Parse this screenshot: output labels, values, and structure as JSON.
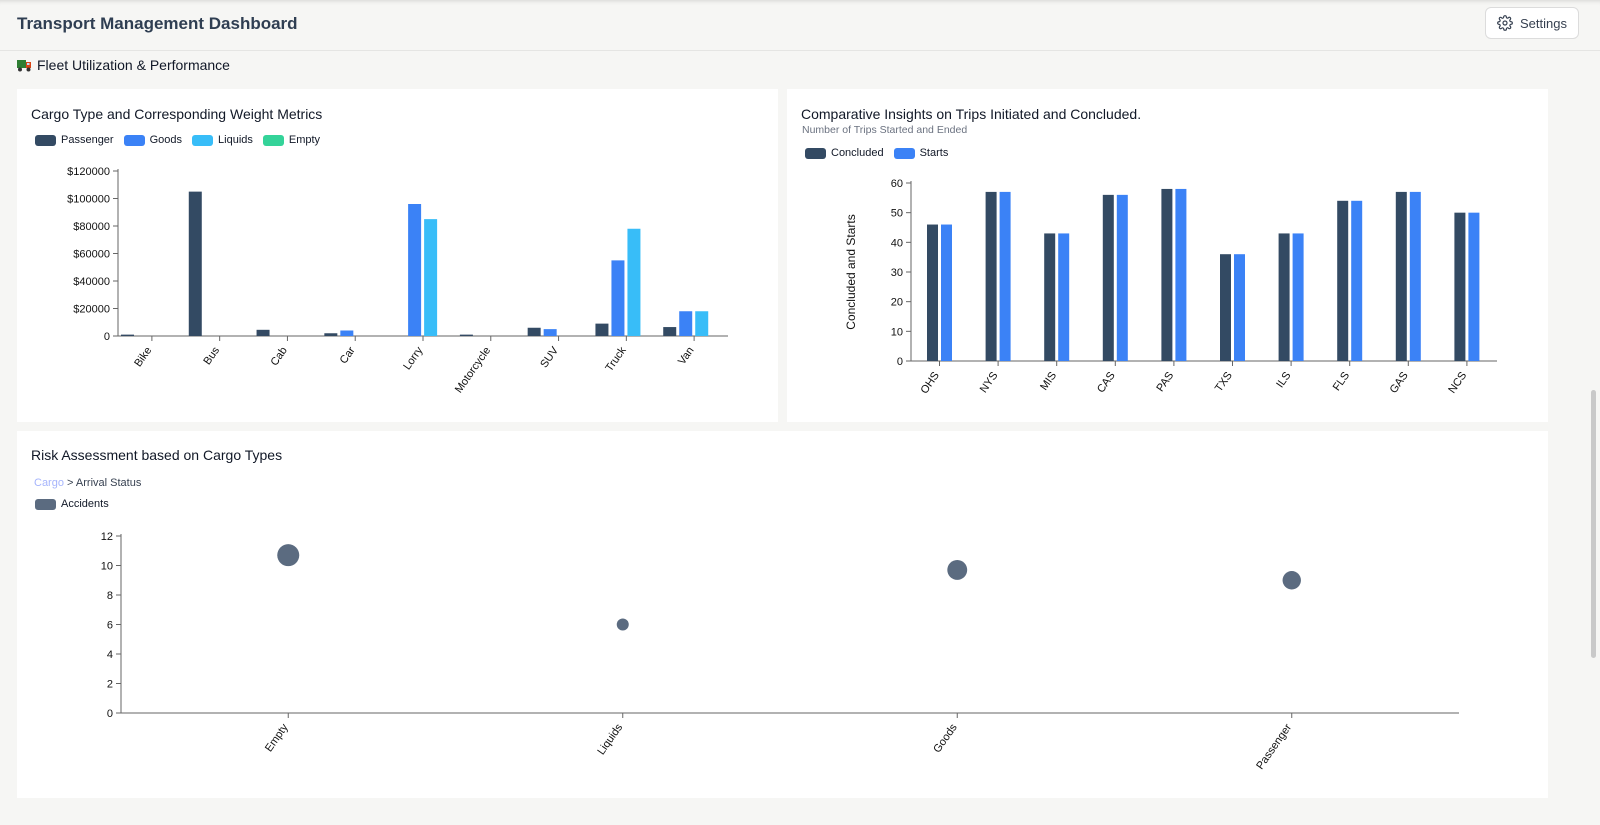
{
  "app": {
    "title": "Transport Management Dashboard",
    "settings_label": "Settings"
  },
  "section": {
    "title": "Fleet Utilization & Performance"
  },
  "charts": {
    "cargo": {
      "title": "Cargo Type and Corresponding Weight Metrics"
    },
    "trips": {
      "title": "Comparative Insights on Trips Initiated and Concluded.",
      "subtitle": "Number of Trips Started and Ended"
    },
    "risk": {
      "title": "Risk Assessment based on Cargo Types",
      "breadcrumb_link": "Cargo",
      "breadcrumb_sep": ">",
      "breadcrumb_current": "Arrival Status"
    }
  },
  "colors": {
    "passenger": "#334a63",
    "goods": "#3b82f6",
    "liquids": "#38bdf8",
    "empty": "#34d399",
    "accidents": "#5b6b80"
  },
  "icons": {
    "settings": "gear-icon",
    "section": "truck-icon"
  },
  "chart_data": [
    {
      "type": "bar",
      "title": "Cargo Type and Corresponding Weight Metrics",
      "categories": [
        "Bike",
        "Bus",
        "Cab",
        "Car",
        "Lorry",
        "Motorcycle",
        "SUV",
        "Truck",
        "Van"
      ],
      "series": [
        {
          "name": "Passenger",
          "values": [
            1000,
            105000,
            4500,
            2000,
            0,
            1000,
            6000,
            9000,
            6500
          ]
        },
        {
          "name": "Goods",
          "values": [
            0,
            0,
            0,
            4000,
            96000,
            0,
            5000,
            55000,
            18000
          ]
        },
        {
          "name": "Liquids",
          "values": [
            0,
            0,
            0,
            0,
            85000,
            0,
            0,
            78000,
            18000
          ]
        },
        {
          "name": "Empty",
          "values": [
            0,
            0,
            0,
            0,
            0,
            0,
            0,
            0,
            0
          ]
        }
      ],
      "yticks": [
        "0",
        "$20000",
        "$40000",
        "$60000",
        "$80000",
        "$100000",
        "$120000"
      ],
      "ylim": [
        0,
        120000
      ],
      "legend": "top-left",
      "grid": false
    },
    {
      "type": "bar",
      "title": "Comparative Insights on Trips Initiated and Concluded.",
      "subtitle": "Number of Trips Started and Ended",
      "categories": [
        "OHS",
        "NYS",
        "MIS",
        "CAS",
        "PAS",
        "TXS",
        "ILS",
        "FLS",
        "GAS",
        "NCS"
      ],
      "series": [
        {
          "name": "Concluded",
          "values": [
            46,
            57,
            43,
            56,
            58,
            36,
            43,
            54,
            57,
            50
          ]
        },
        {
          "name": "Starts",
          "values": [
            46,
            57,
            43,
            56,
            58,
            36,
            43,
            54,
            57,
            50
          ]
        }
      ],
      "ylabel": "Concluded and Starts",
      "yticks": [
        "0",
        "10",
        "20",
        "30",
        "40",
        "50",
        "60"
      ],
      "ylim": [
        0,
        60
      ],
      "legend": "top-left",
      "grid": false
    },
    {
      "type": "scatter",
      "title": "Risk Assessment based on Cargo Types",
      "categories": [
        "Empty",
        "Liquids",
        "Goods",
        "Passenger"
      ],
      "series": [
        {
          "name": "Accidents",
          "values": [
            10.7,
            6,
            9.7,
            9
          ]
        }
      ],
      "yticks": [
        "0",
        "2",
        "4",
        "6",
        "8",
        "10",
        "12"
      ],
      "ylim": [
        0,
        12
      ],
      "legend": "top-left",
      "grid": false
    }
  ]
}
